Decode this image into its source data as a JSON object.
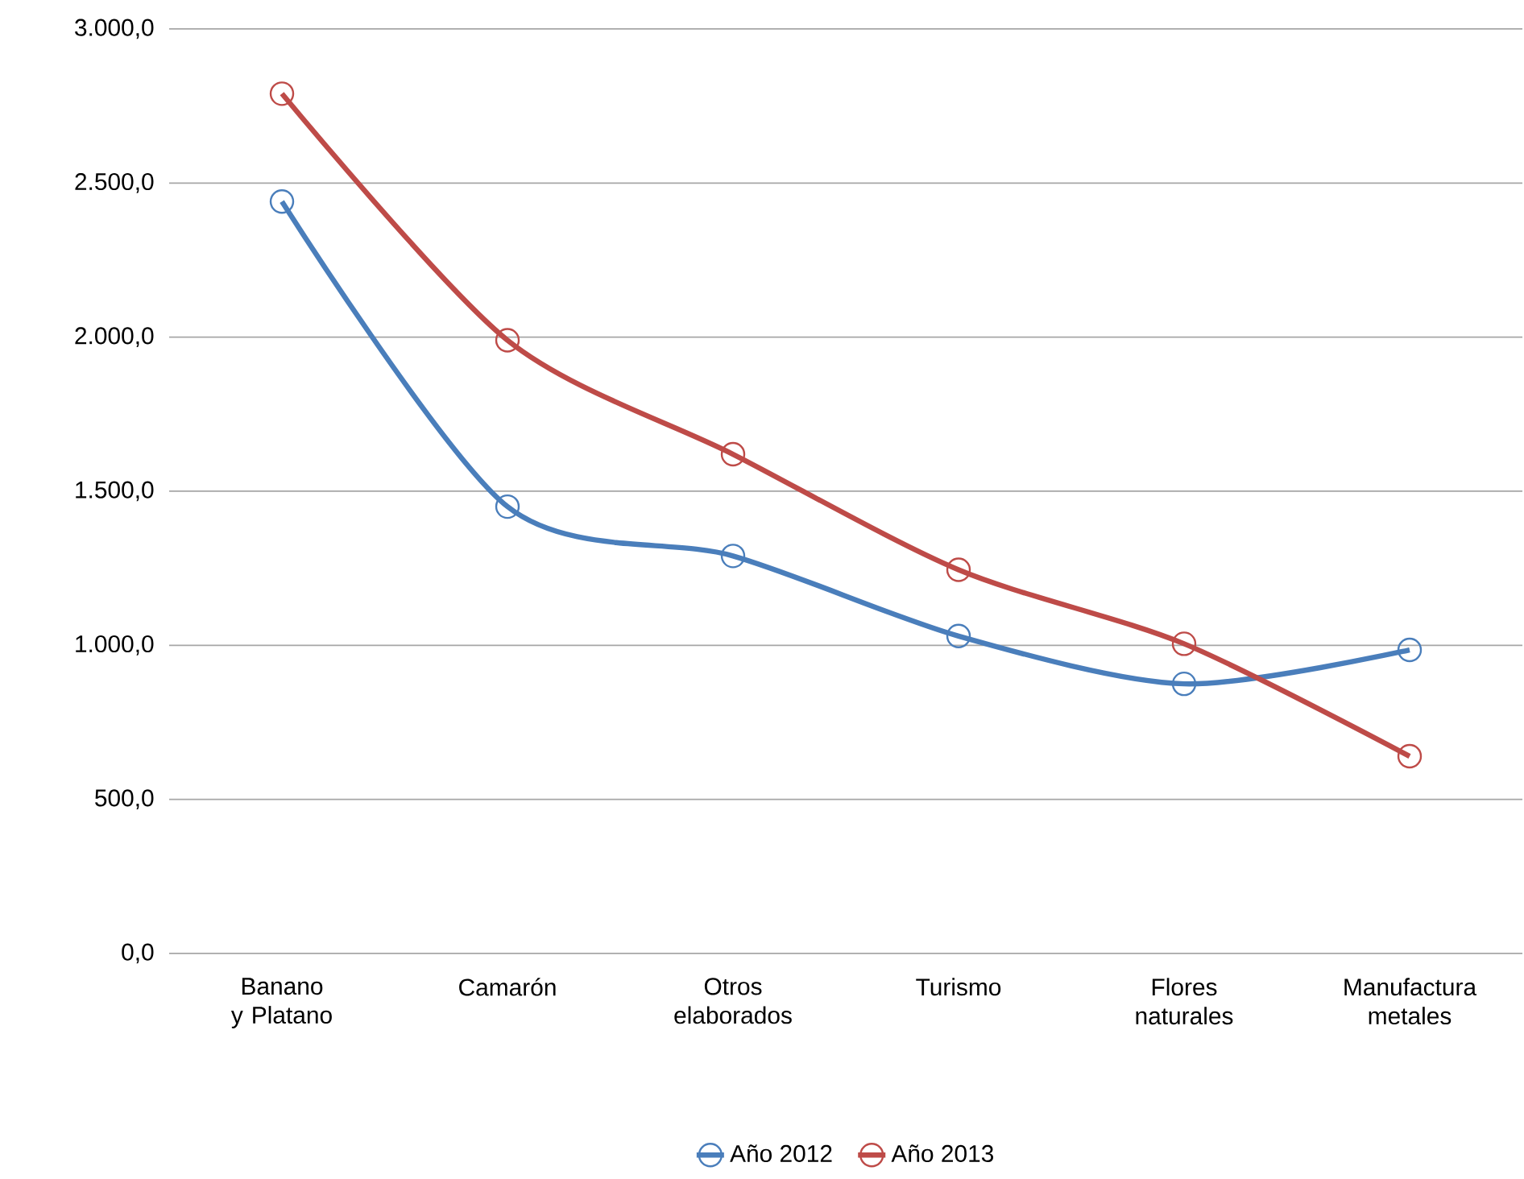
{
  "chart_data": {
    "type": "line",
    "categories": [
      "Banano y Platano",
      "Camarón",
      "Otros elaborados",
      "Turismo",
      "Flores naturales",
      "Manufactura metales"
    ],
    "series": [
      {
        "name": "Año 2012",
        "color": "#4a7ebb",
        "values": [
          2440,
          1450,
          1290,
          1030,
          875,
          985
        ]
      },
      {
        "name": "Año 2013",
        "color": "#be4b48",
        "values": [
          2790,
          1990,
          1620,
          1245,
          1005,
          640
        ]
      }
    ],
    "ylim": [
      0,
      3000
    ],
    "yticks": [
      {
        "value": 0,
        "label": "0,0"
      },
      {
        "value": 500,
        "label": "500,0"
      },
      {
        "value": 1000,
        "label": "1.000,0"
      },
      {
        "value": 1500,
        "label": "1.500,0"
      },
      {
        "value": 2000,
        "label": "2.000,0"
      },
      {
        "value": 2500,
        "label": "2.500,0"
      },
      {
        "value": 3000,
        "label": "3.000,0"
      }
    ],
    "grid": "y",
    "legend": "bottom",
    "marker": "circle",
    "line_style": "solid"
  }
}
